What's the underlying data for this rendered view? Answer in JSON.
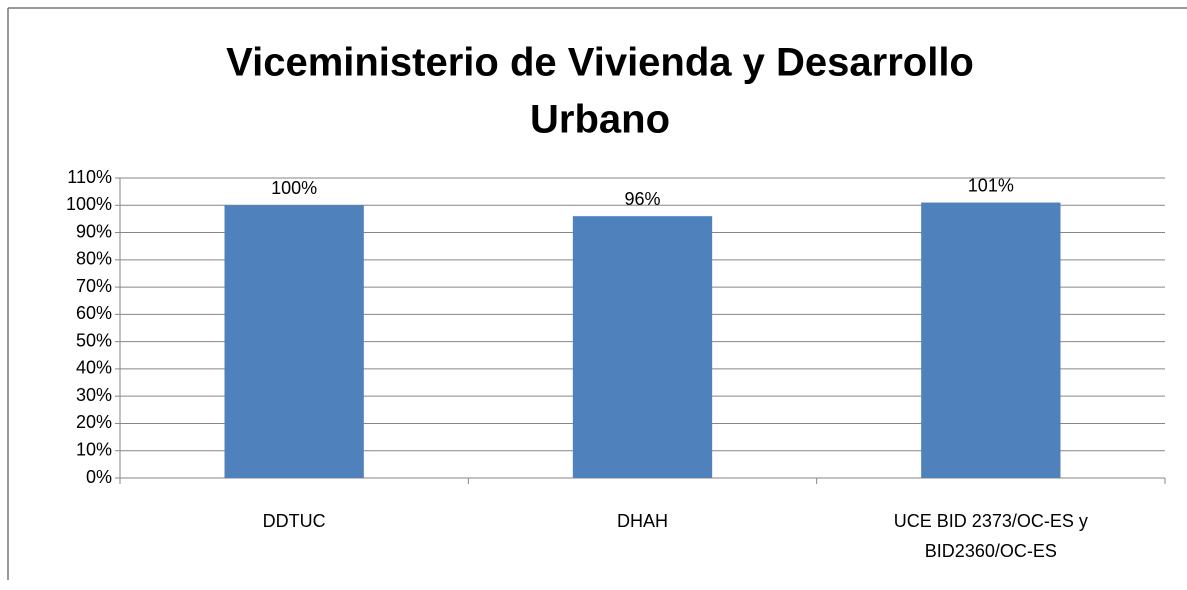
{
  "chart_data": {
    "type": "bar",
    "title": [
      "Viceministerio de Vivienda y Desarrollo",
      "Urbano"
    ],
    "categories": [
      "DDTUC",
      "DHAH",
      "UCE BID 2373/OC-ES y BID2360/OC-ES"
    ],
    "values": [
      100,
      96,
      101
    ],
    "value_labels": [
      "100%",
      "96%",
      "101%"
    ],
    "color": "#4f81bd",
    "ylim": [
      0,
      110
    ],
    "yticks": [
      {
        "value": 0,
        "label": "0%"
      },
      {
        "value": 10,
        "label": "10%"
      },
      {
        "value": 20,
        "label": "20%"
      },
      {
        "value": 30,
        "label": "30%"
      },
      {
        "value": 40,
        "label": "40%"
      },
      {
        "value": 50,
        "label": "50%"
      },
      {
        "value": 60,
        "label": "60%"
      },
      {
        "value": 70,
        "label": "70%"
      },
      {
        "value": 80,
        "label": "80%"
      },
      {
        "value": 90,
        "label": "90%"
      },
      {
        "value": 100,
        "label": "100%"
      },
      {
        "value": 110,
        "label": "110%"
      }
    ],
    "grid": true
  }
}
